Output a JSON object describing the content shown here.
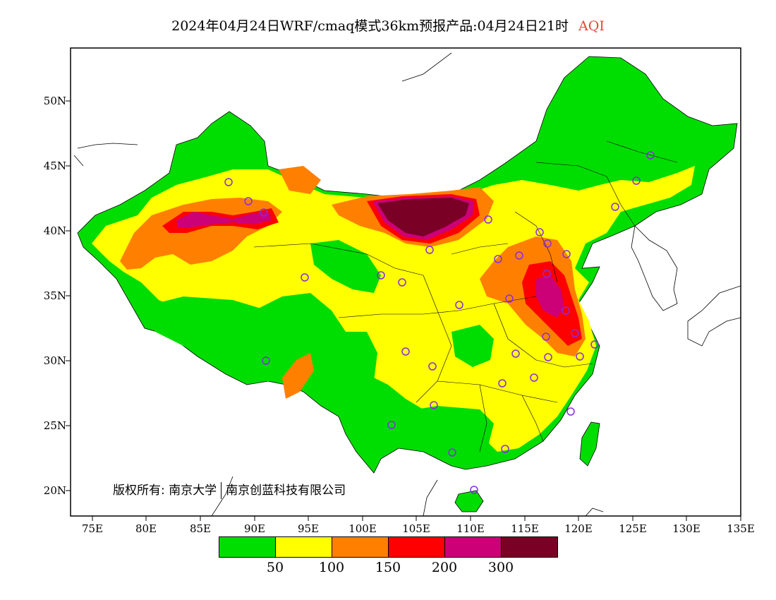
{
  "title": {
    "main": "2024年04月24日WRF/cmaq模式36km预报产品:04月24日21时",
    "variable": "AQI"
  },
  "axes": {
    "lat_labels": [
      "50N",
      "45N",
      "40N",
      "35N",
      "30N",
      "25N",
      "20N"
    ],
    "lon_labels": [
      "75E",
      "80E",
      "85E",
      "90E",
      "95E",
      "100E",
      "105E",
      "110E",
      "115E",
      "120E",
      "125E",
      "130E",
      "135E"
    ]
  },
  "copyright": {
    "prefix": "版权所有:",
    "org1": "南京大学",
    "org2": "南京创蓝科技有限公司"
  },
  "legend": {
    "colors": [
      "#00dd00",
      "#ffff00",
      "#ff8000",
      "#ff0000",
      "#cc0077",
      "#7a0026"
    ],
    "ticks": [
      "50",
      "100",
      "150",
      "200",
      "300"
    ]
  },
  "map_colors": {
    "good": "#00dd00",
    "moderate": "#ffff00",
    "usg": "#ff8000",
    "unhealthy": "#ff0000",
    "very_unhealthy": "#cc0077",
    "hazardous": "#7a0026",
    "station_marker": "#8a2be2"
  }
}
